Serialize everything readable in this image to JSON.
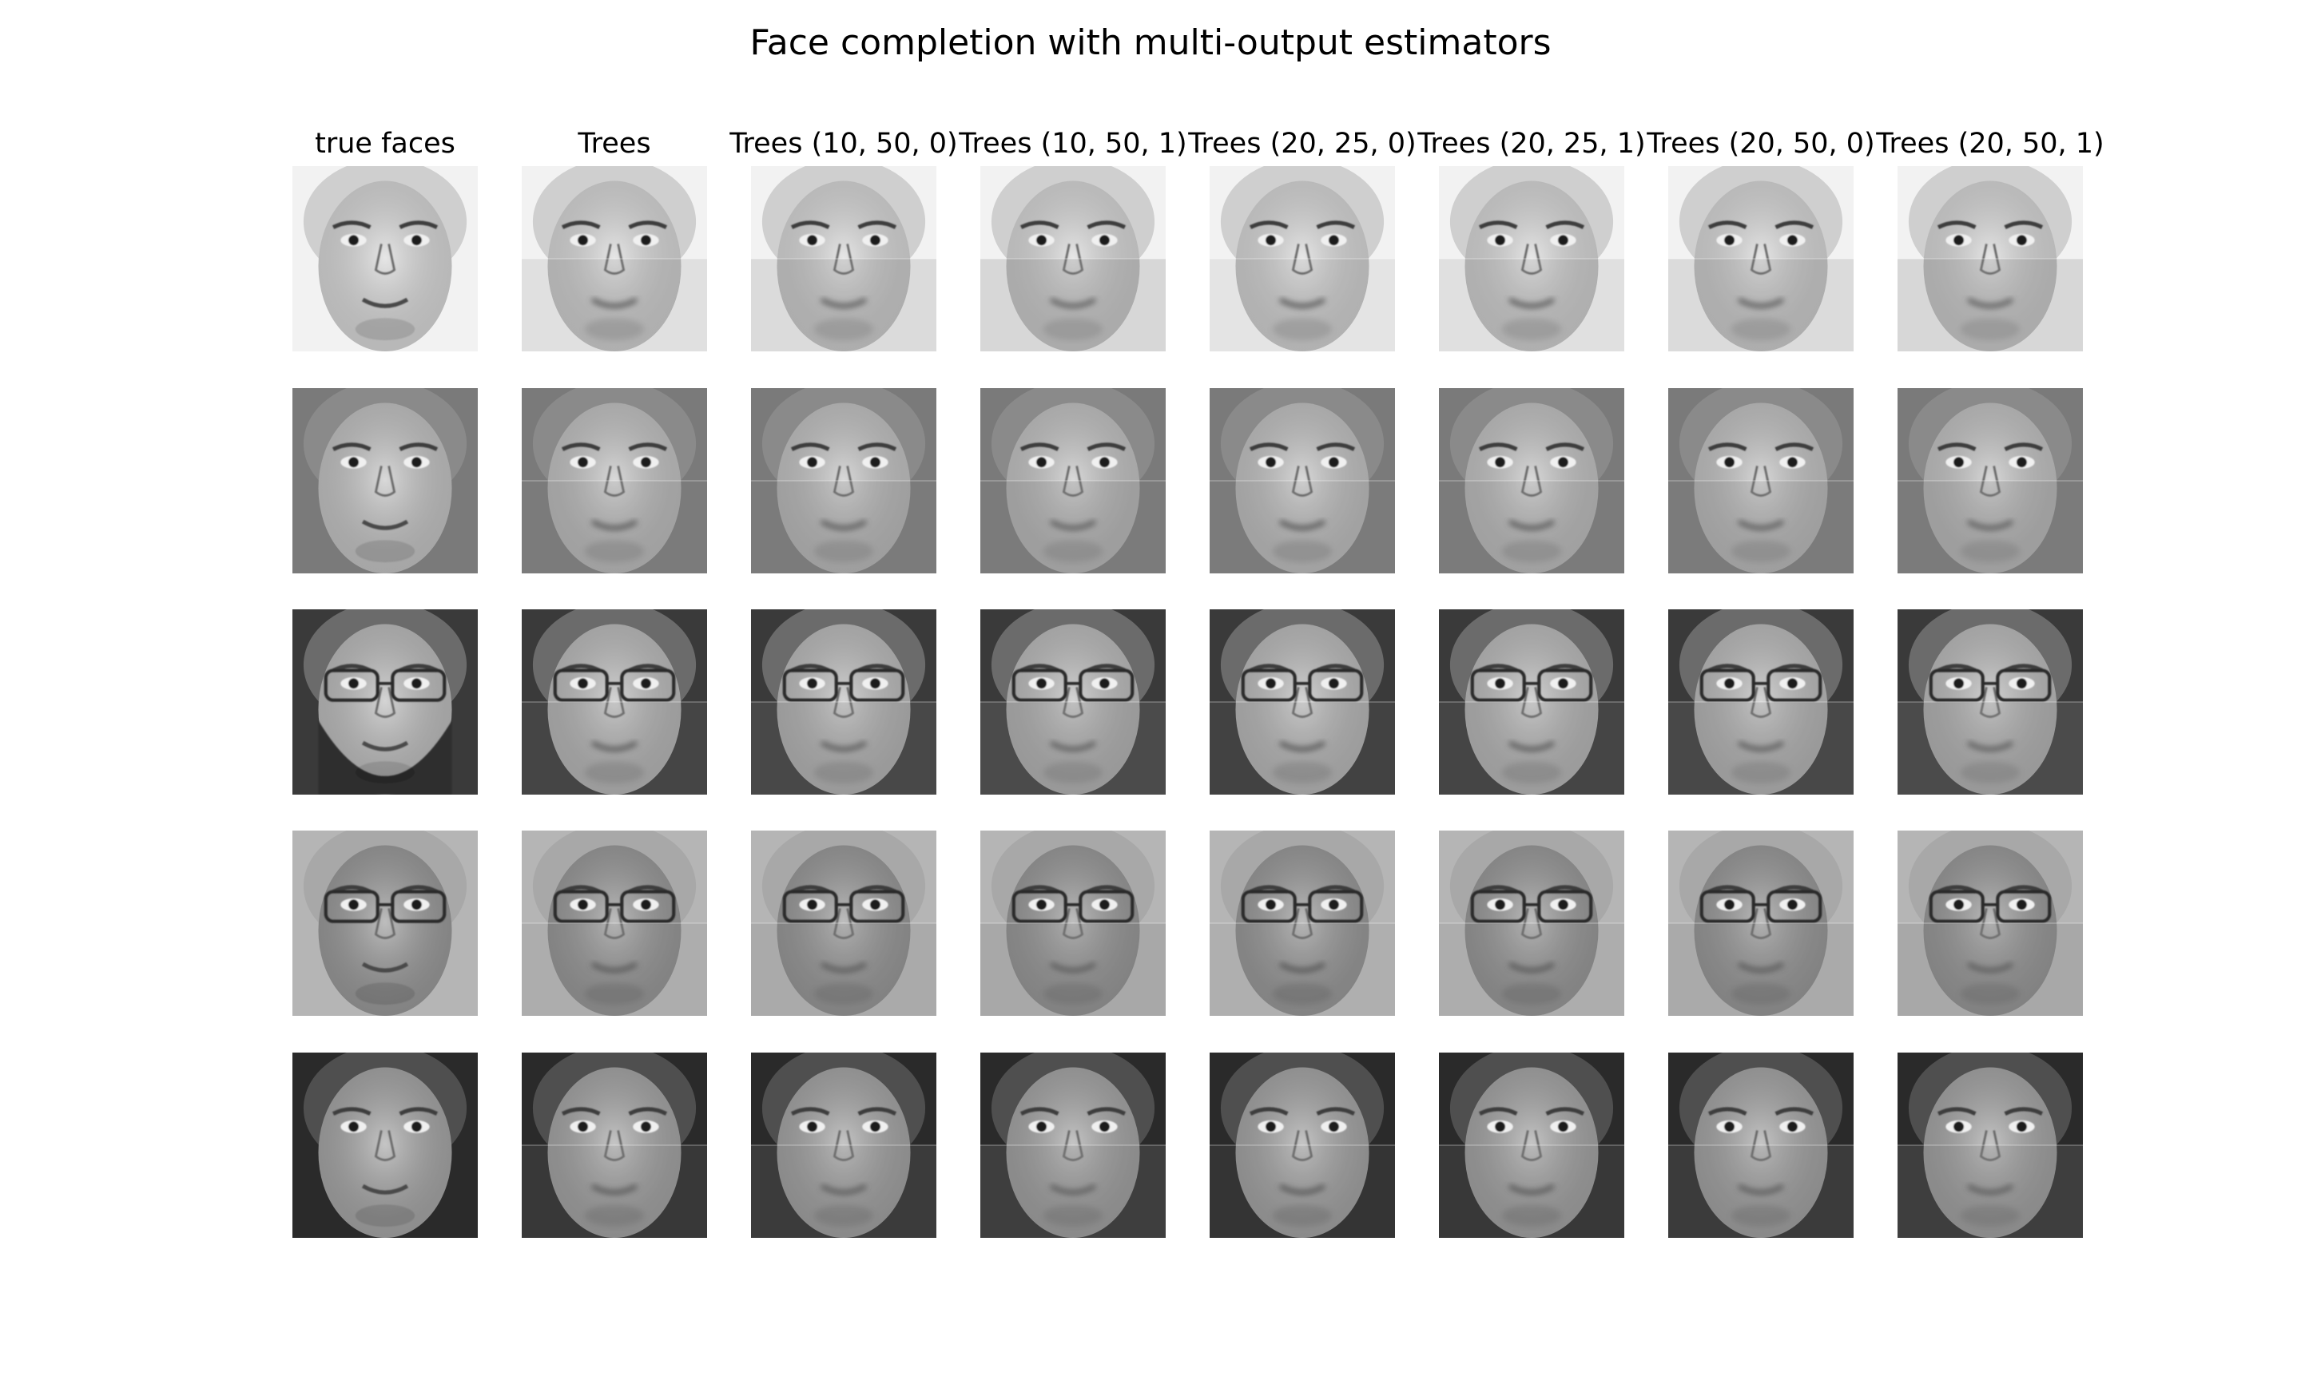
{
  "title": "Face completion with multi-output estimators",
  "columns": [
    {
      "label": "true faces",
      "kind": "true"
    },
    {
      "label": "Trees",
      "kind": "est"
    },
    {
      "label": "Trees (10, 50, 0)",
      "kind": "est"
    },
    {
      "label": "Trees (10, 50, 1)",
      "kind": "est"
    },
    {
      "label": "Trees (20, 25, 0)",
      "kind": "est"
    },
    {
      "label": "Trees (20, 25, 1)",
      "kind": "est"
    },
    {
      "label": "Trees (20, 50, 0)",
      "kind": "est"
    },
    {
      "label": "Trees (20, 50, 1)",
      "kind": "est"
    }
  ],
  "faces": [
    {
      "description": "woman with light hair, smiling",
      "skin": "#d9d9d9",
      "hair": "#cfcfcf",
      "bg": "#f2f2f2",
      "glasses": false,
      "beard": false
    },
    {
      "description": "young man, short hair",
      "skin": "#c4c4c4",
      "hair": "#8a8a8a",
      "bg": "#7a7a7a",
      "glasses": false,
      "beard": false
    },
    {
      "description": "man with glasses and full beard",
      "skin": "#bdbdbd",
      "hair": "#6b6b6b",
      "bg": "#3a3a3a",
      "glasses": true,
      "beard": true
    },
    {
      "description": "man with large glasses",
      "skin": "#9a9a9a",
      "hair": "#a8a8a8",
      "bg": "#b5b5b5",
      "glasses": true,
      "beard": false
    },
    {
      "description": "man smiling, short hair",
      "skin": "#a6a6a6",
      "hair": "#4f4f4f",
      "bg": "#2a2a2a",
      "glasses": false,
      "beard": false
    }
  ]
}
